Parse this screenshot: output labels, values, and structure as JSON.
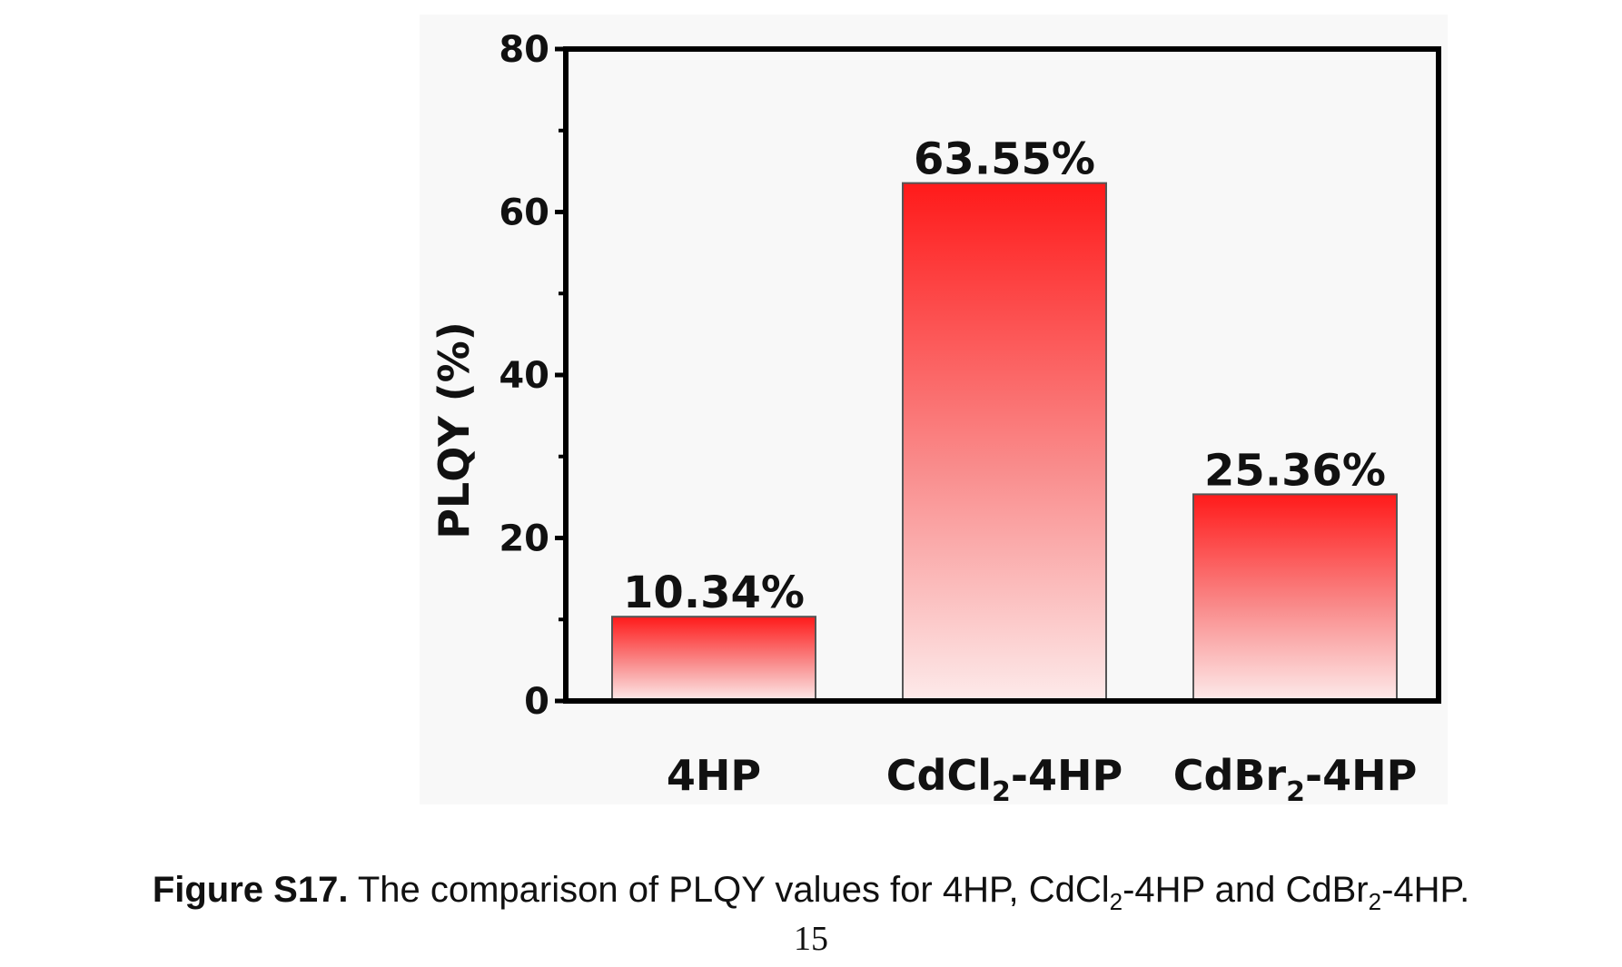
{
  "chart_data": {
    "type": "bar",
    "categories": [
      "4HP",
      "CdCl2-4HP",
      "CdBr2-4HP"
    ],
    "category_display": [
      {
        "main": "4HP",
        "sub": "",
        "rest": ""
      },
      {
        "main": "CdCl",
        "sub": "2",
        "rest": "-4HP"
      },
      {
        "main": "CdBr",
        "sub": "2",
        "rest": "-4HP"
      }
    ],
    "values": [
      10.34,
      63.55,
      25.36
    ],
    "value_labels": [
      "10.34%",
      "63.55%",
      "25.36%"
    ],
    "ylabel": "PLQY (%)",
    "xlabel": "",
    "title": "",
    "ylim": [
      0,
      80
    ],
    "yticks": [
      0,
      20,
      40,
      60,
      80
    ],
    "grid": false,
    "bar_color_top": "#ff1a1a",
    "bar_color_bottom": "#fdeaea"
  },
  "caption": {
    "label": "Figure S17.",
    "text_parts": [
      " The comparison of PLQY values for 4HP, CdCl",
      "2",
      "-4HP and CdBr",
      "2",
      "-4HP."
    ]
  },
  "page_number": "15"
}
